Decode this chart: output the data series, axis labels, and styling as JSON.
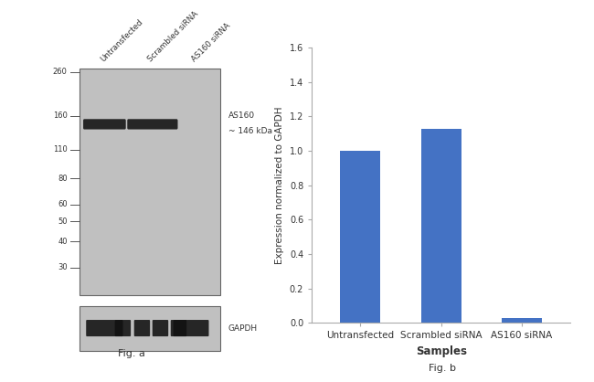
{
  "fig_width": 6.5,
  "fig_height": 4.18,
  "background_color": "#ffffff",
  "wb_panel": {
    "gel_bg": "#c0c0c0",
    "gel_border_color": "#666666",
    "mw_labels": [
      260,
      160,
      110,
      80,
      60,
      50,
      40,
      30
    ],
    "band_color": "#0a0a0a",
    "lane_labels": [
      "Untransfected",
      "Scrambled siRNA",
      "AS160 siRNA"
    ],
    "as160_label_line1": "AS160",
    "as160_label_line2": "~ 146 kDa",
    "gapdh_label": "GAPDH",
    "fig_label": "Fig. a"
  },
  "bar_panel": {
    "categories": [
      "Untransfected",
      "Scrambled siRNA",
      "AS160 siRNA"
    ],
    "values": [
      1.0,
      1.13,
      0.03
    ],
    "bar_color": "#4472c4",
    "bar_width": 0.5,
    "ylim": [
      0,
      1.6
    ],
    "yticks": [
      0.0,
      0.2,
      0.4,
      0.6,
      0.8,
      1.0,
      1.2,
      1.4,
      1.6
    ],
    "ylabel": "Expression normalized to GAPDH",
    "xlabel": "Samples",
    "fig_label": "Fig. b"
  }
}
